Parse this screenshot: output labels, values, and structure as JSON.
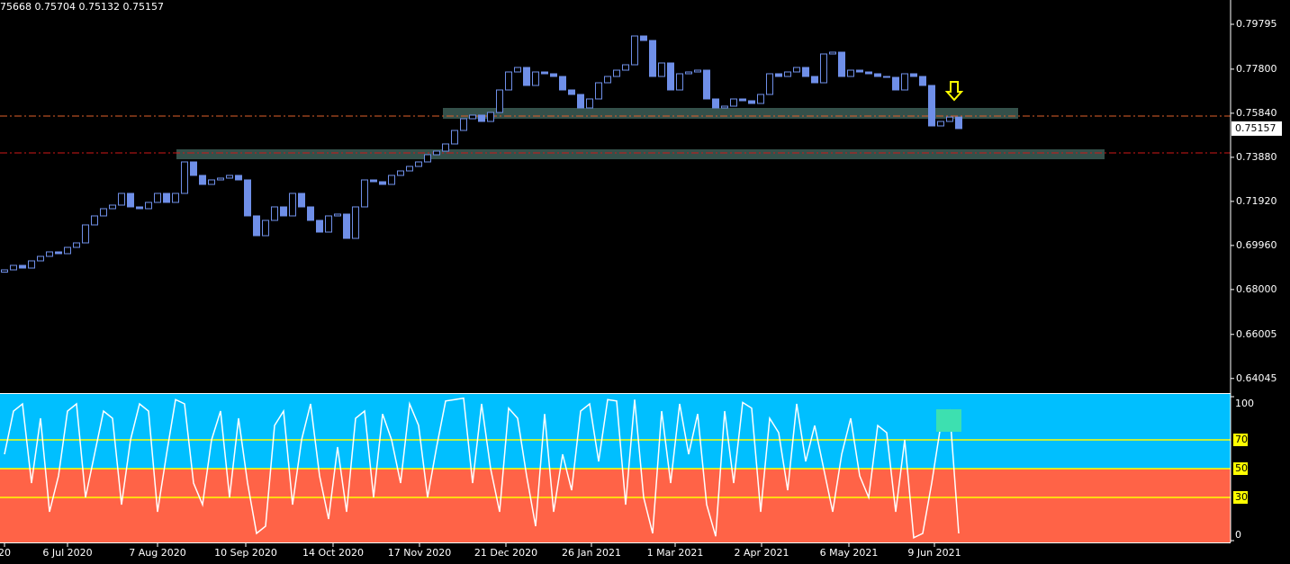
{
  "header": "75668 0.75704 0.75132 0.75157",
  "chart_data": [
    {
      "type": "candlestick",
      "color": "#6f8fe8",
      "xlim": [
        -0.5,
        136.2
      ],
      "ylim": [
        0.63395,
        0.80875
      ],
      "yticks": [
        {
          "value": 0.79795,
          "label": "0.79795"
        },
        {
          "value": 0.778,
          "label": "0.77800"
        },
        {
          "value": 0.7584,
          "label": "0.75840"
        },
        {
          "value": 0.7388,
          "label": "0.73880"
        },
        {
          "value": 0.7192,
          "label": "0.71920"
        },
        {
          "value": 0.6996,
          "label": "0.69960"
        },
        {
          "value": 0.68,
          "label": "0.68000"
        },
        {
          "value": 0.66005,
          "label": "0.66005"
        },
        {
          "value": 0.64045,
          "label": "0.64045"
        }
      ],
      "open": [
        0.68775,
        0.68875,
        0.69075,
        0.68955,
        0.69275,
        0.69475,
        0.69675,
        0.69595,
        0.69875,
        0.70075,
        0.70875,
        0.71275,
        0.71595,
        0.71755,
        0.72275,
        0.71675,
        0.71595,
        0.71875,
        0.72275,
        0.71875,
        0.72275,
        0.73675,
        0.73075,
        0.72675,
        0.72875,
        0.72955,
        0.73075,
        0.72875,
        0.71275,
        0.70395,
        0.71075,
        0.71675,
        0.71275,
        0.72275,
        0.71675,
        0.71075,
        0.70555,
        0.71275,
        0.71355,
        0.70275,
        0.71675,
        0.72875,
        0.72795,
        0.72675,
        0.73075,
        0.73275,
        0.73475,
        0.73675,
        0.73995,
        0.74155,
        0.74475,
        0.75075,
        0.75595,
        0.75755,
        0.75475,
        0.75875,
        0.76875,
        0.77675,
        0.77875,
        0.77075,
        0.77675,
        0.77595,
        0.77475,
        0.76875,
        0.76675,
        0.76075,
        0.76475,
        0.77195,
        0.77475,
        0.77755,
        0.77995,
        0.79275,
        0.79075,
        0.77475,
        0.78075,
        0.76875,
        0.77595,
        0.77675,
        0.77755,
        0.76475,
        0.76075,
        0.76155,
        0.76475,
        0.76395,
        0.76275,
        0.76675,
        0.77595,
        0.77475,
        0.77675,
        0.77875,
        0.77475,
        0.77195,
        0.78475,
        0.78555,
        0.77475,
        0.77755,
        0.77675,
        0.77595,
        0.77475,
        0.77435,
        0.76875,
        0.77595,
        0.77475,
        0.77075,
        0.75275,
        0.75475,
        0.75668
      ],
      "close": [
        0.68875,
        0.69075,
        0.68955,
        0.69275,
        0.69475,
        0.69675,
        0.69595,
        0.69875,
        0.70075,
        0.70875,
        0.71275,
        0.71595,
        0.71755,
        0.72275,
        0.71675,
        0.71595,
        0.71875,
        0.72275,
        0.71875,
        0.72275,
        0.73675,
        0.73075,
        0.72675,
        0.72875,
        0.72955,
        0.73075,
        0.72875,
        0.71275,
        0.70395,
        0.71075,
        0.71675,
        0.71275,
        0.72275,
        0.71675,
        0.71075,
        0.70555,
        0.71275,
        0.71355,
        0.70275,
        0.71675,
        0.72875,
        0.72795,
        0.72675,
        0.73075,
        0.73275,
        0.73475,
        0.73675,
        0.73995,
        0.74155,
        0.74475,
        0.75075,
        0.75595,
        0.75755,
        0.75475,
        0.75875,
        0.76875,
        0.77675,
        0.77875,
        0.77075,
        0.77675,
        0.77595,
        0.77475,
        0.76875,
        0.76675,
        0.76075,
        0.76475,
        0.77195,
        0.77475,
        0.77755,
        0.77995,
        0.79275,
        0.79075,
        0.77475,
        0.78075,
        0.76875,
        0.77595,
        0.77675,
        0.77755,
        0.76475,
        0.76075,
        0.76155,
        0.76475,
        0.76395,
        0.76275,
        0.76675,
        0.77595,
        0.77475,
        0.77675,
        0.77875,
        0.77475,
        0.77195,
        0.78475,
        0.78555,
        0.77475,
        0.77755,
        0.77675,
        0.77595,
        0.77475,
        0.77435,
        0.76875,
        0.77595,
        0.77475,
        0.77075,
        0.75275,
        0.75475,
        0.75668,
        0.75157
      ]
    },
    {
      "type": "line",
      "color": "#ffffff",
      "upper_color": "#00bfff",
      "lower_color": "#ff6347",
      "level_color": "#ffff00",
      "xlim": [
        -0.5,
        136.2
      ],
      "ylim": [
        0,
        100
      ],
      "yticks": [
        100,
        70,
        50,
        30,
        0
      ],
      "xticks": [
        {
          "value": 0,
          "label": "20"
        },
        {
          "value": 7,
          "label": "6 Jul 2020"
        },
        {
          "value": 17,
          "label": "7 Aug 2020"
        },
        {
          "value": 26.8,
          "label": "10 Sep 2020"
        },
        {
          "value": 36.5,
          "label": "14 Oct 2020"
        },
        {
          "value": 46.1,
          "label": "17 Nov 2020"
        },
        {
          "value": 55.7,
          "label": "21 Dec 2020"
        },
        {
          "value": 65.2,
          "label": "26 Jan 2021"
        },
        {
          "value": 74.5,
          "label": "1 Mar 2021"
        },
        {
          "value": 84.1,
          "label": "2 Apr 2021"
        },
        {
          "value": 93.8,
          "label": "6 May 2021"
        },
        {
          "value": 103.3,
          "label": "9 Jun 2021"
        }
      ],
      "values": [
        60,
        90,
        95,
        40,
        85,
        20,
        45,
        90,
        95,
        30,
        60,
        90,
        85,
        25,
        70,
        95,
        90,
        20,
        60,
        98,
        95,
        40,
        25,
        70,
        90,
        30,
        85,
        40,
        5,
        10,
        80,
        90,
        25,
        70,
        95,
        45,
        15,
        65,
        20,
        85,
        90,
        30,
        88,
        70,
        40,
        95,
        80,
        30,
        65,
        97,
        98,
        99,
        40,
        95,
        50,
        20,
        92,
        85,
        45,
        10,
        88,
        20,
        60,
        35,
        90,
        95,
        55,
        98,
        97,
        25,
        98,
        30,
        5,
        90,
        40,
        95,
        60,
        88,
        25,
        3,
        90,
        40,
        96,
        92,
        20,
        85,
        75,
        35,
        95,
        55,
        80,
        50,
        20,
        60,
        85,
        45,
        30,
        80,
        75,
        20,
        70,
        2,
        5,
        40,
        80,
        90,
        5
      ]
    }
  ]
}
